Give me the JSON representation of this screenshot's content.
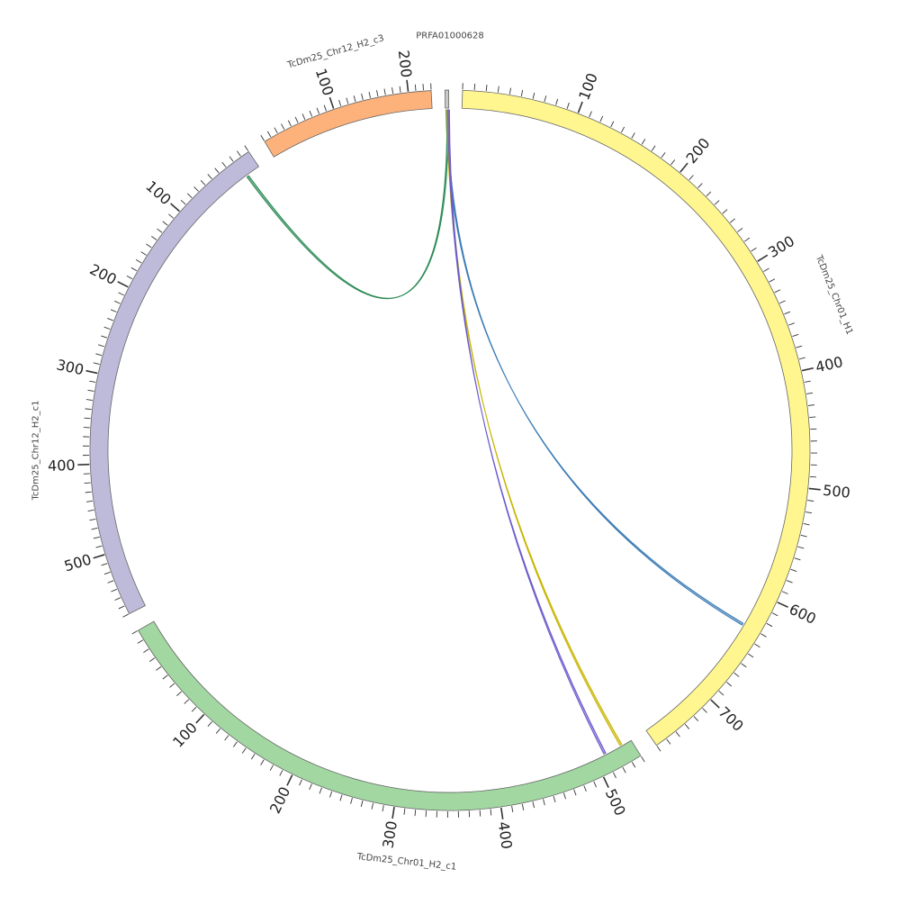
{
  "diagram": {
    "type": "circos",
    "segments": [
      {
        "id": "chr01_h1",
        "label": "TcDm25_Chr01_H1",
        "length": 760,
        "color": "#fff68f",
        "ticks": [
          "100",
          "200",
          "300",
          "400",
          "500",
          "600",
          "700"
        ]
      },
      {
        "id": "chr01_h2_c1",
        "label": "TcDm25_Chr01_H2_c1",
        "length": 540,
        "color": "#a2d7a2",
        "ticks": [
          "100",
          "200",
          "300",
          "400",
          "500"
        ]
      },
      {
        "id": "chr12_h2_c1",
        "label": "TcDm25_Chr12_H2_c1",
        "length": 570,
        "color": "#bebada",
        "ticks": [
          "100",
          "200",
          "300",
          "400",
          "500"
        ]
      },
      {
        "id": "chr12_h2_c3",
        "label": "TcDm25_Chr12_H2_c3",
        "length": 230,
        "color": "#fdb27b",
        "ticks": [
          "100",
          "200"
        ]
      },
      {
        "id": "prfa",
        "label": "PRFA01000628",
        "length": 4,
        "color": "#c8c8c8",
        "ticks": []
      }
    ],
    "links": [
      {
        "from": "prfa",
        "from_pos": 1,
        "to": "chr01_h1",
        "to_pos": 630,
        "color": "#3a7bb5"
      },
      {
        "from": "prfa",
        "from_pos": 2,
        "to": "chr12_h2_c1",
        "to_pos": 18,
        "color": "#2e8b57"
      },
      {
        "from": "prfa",
        "from_pos": 2,
        "to": "chr01_h2_c1",
        "to_pos": 530,
        "color": "#c8b400"
      },
      {
        "from": "prfa",
        "from_pos": 3,
        "to": "chr01_h2_c1",
        "to_pos": 512,
        "color": "#6a5acd"
      }
    ]
  }
}
